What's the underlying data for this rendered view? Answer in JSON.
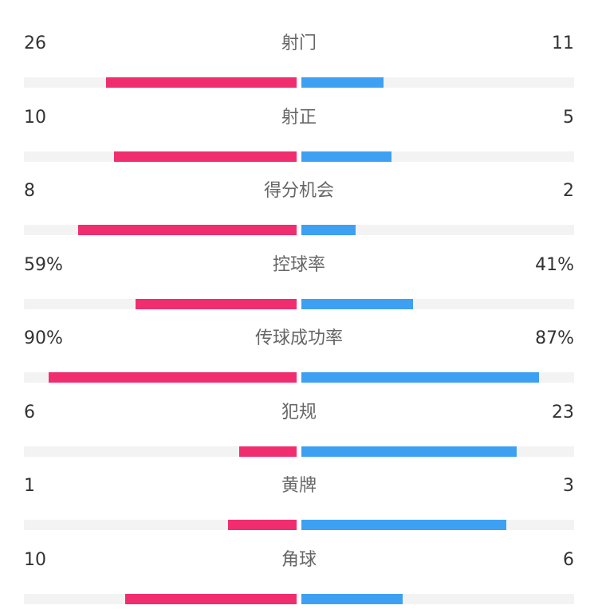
{
  "colors": {
    "home": "#f02d6e",
    "away": "#3ea0f2",
    "track": "#f3f3f3",
    "label": "#666666",
    "value": "#333333"
  },
  "chart_data": {
    "type": "bar",
    "orientation": "diverging-horizontal",
    "categories": [
      "射门",
      "射正",
      "得分机会",
      "控球率",
      "传球成功率",
      "犯规",
      "黄牌",
      "角球"
    ],
    "series": [
      {
        "values": [
          26,
          10,
          8,
          59,
          90,
          6,
          1,
          10
        ]
      },
      {
        "values": [
          11,
          5,
          2,
          41,
          87,
          23,
          3,
          6
        ]
      }
    ],
    "bar_fill": {
      "left": [
        0.7,
        0.67,
        0.8,
        0.59,
        0.91,
        0.21,
        0.25,
        0.63
      ],
      "right": [
        0.3,
        0.33,
        0.2,
        0.41,
        0.87,
        0.79,
        0.75,
        0.37
      ]
    }
  },
  "rows": [
    {
      "label": "射门",
      "left": "26",
      "right": "11"
    },
    {
      "label": "射正",
      "left": "10",
      "right": "5"
    },
    {
      "label": "得分机会",
      "left": "8",
      "right": "2"
    },
    {
      "label": "控球率",
      "left": "59%",
      "right": "41%"
    },
    {
      "label": "传球成功率",
      "left": "90%",
      "right": "87%"
    },
    {
      "label": "犯规",
      "left": "6",
      "right": "23"
    },
    {
      "label": "黄牌",
      "left": "1",
      "right": "3"
    },
    {
      "label": "角球",
      "left": "10",
      "right": "6"
    }
  ]
}
